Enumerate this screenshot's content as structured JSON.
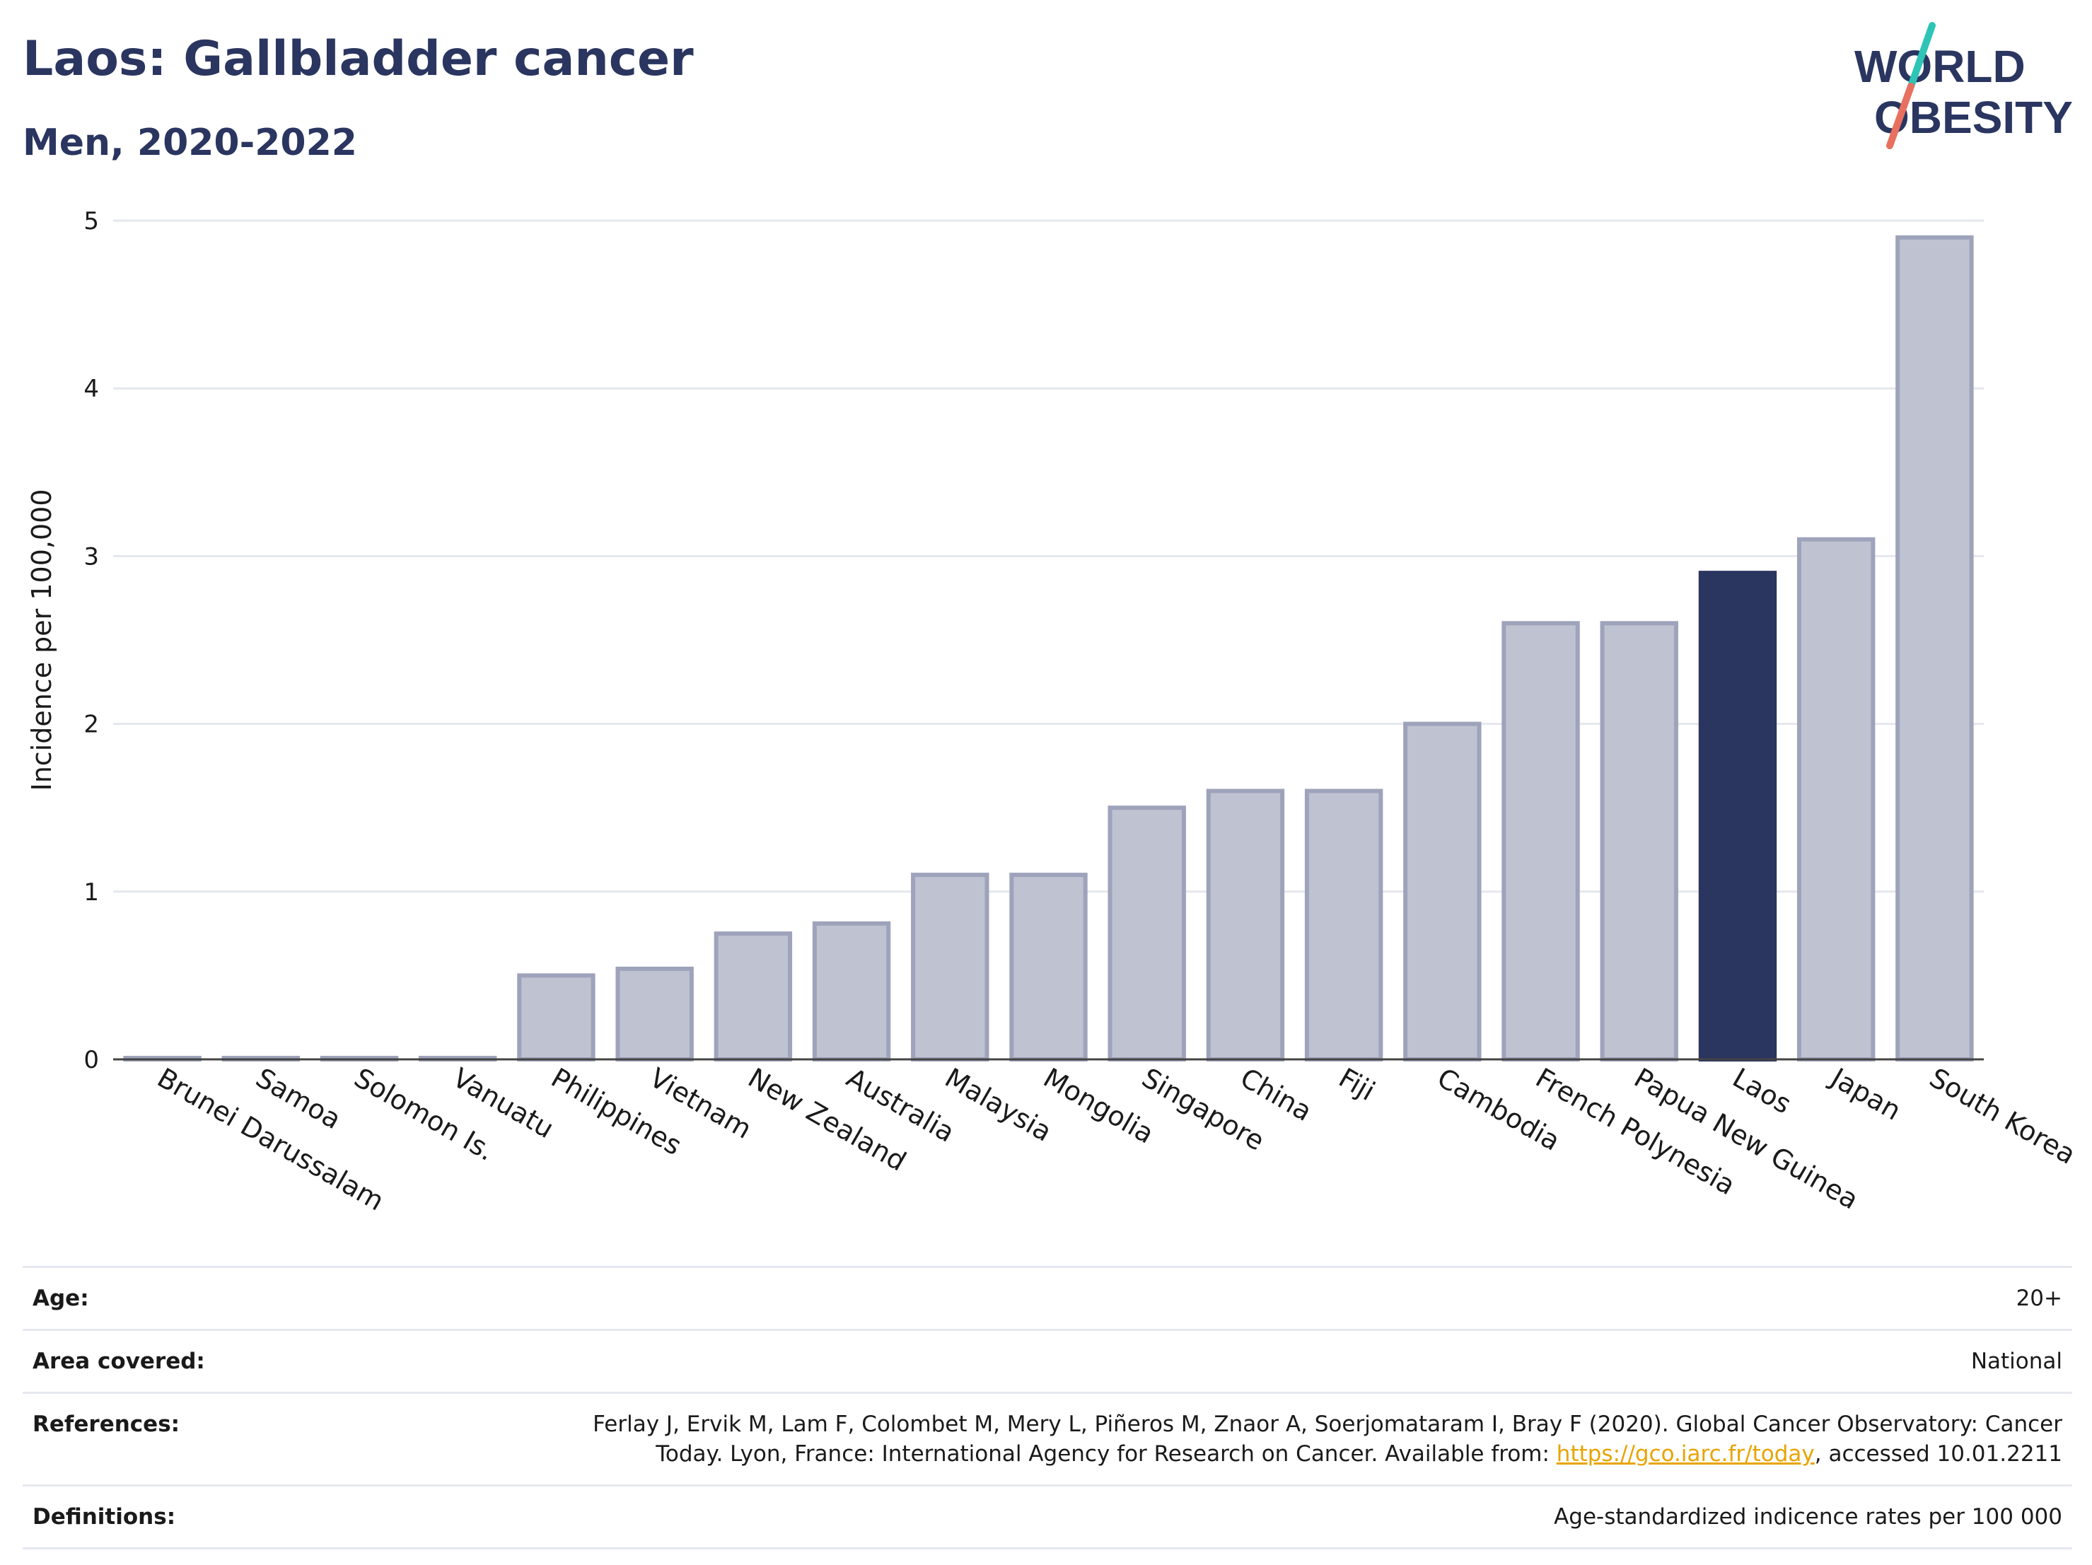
{
  "title": "Laos: Gallbladder cancer",
  "subtitle": "Men, 2020-2022",
  "logo": {
    "line1": "WORLD",
    "line2": "OBESITY"
  },
  "colors": {
    "highlight": "#2a3560",
    "bar_fill": "#bfc2d0",
    "bar_stroke": "#9ea3bb",
    "logo_teal": "#2ec4b6",
    "logo_coral": "#e8705f",
    "link": "#e8a400"
  },
  "chart_data": {
    "type": "bar",
    "ylabel": "Incidence per 100,000",
    "ylim": [
      0,
      5
    ],
    "yticks": [
      0,
      1,
      2,
      3,
      4,
      5
    ],
    "grid": true,
    "highlight": "Laos",
    "categories": [
      "Brunei Darussalam",
      "Samoa",
      "Solomon Is.",
      "Vanuatu",
      "Philippines",
      "Vietnam",
      "New Zealand",
      "Australia",
      "Malaysia",
      "Mongolia",
      "Singapore",
      "China",
      "Fiji",
      "Cambodia",
      "French Polynesia",
      "Papua New Guinea",
      "Laos",
      "Japan",
      "South Korea"
    ],
    "values": [
      0,
      0,
      0,
      0,
      0.5,
      0.54,
      0.75,
      0.81,
      1.1,
      1.1,
      1.5,
      1.6,
      1.6,
      2.0,
      2.6,
      2.6,
      2.9,
      3.1,
      4.9
    ]
  },
  "info": {
    "age_label": "Age:",
    "age_value": "20+",
    "area_label": "Area covered:",
    "area_value": "National",
    "references_label": "References:",
    "references_line1": "Ferlay J, Ervik M, Lam F, Colombet M, Mery L, Piñeros M, Znaor A, Soerjomataram I, Bray F (2020). Global Cancer Observatory: Cancer",
    "references_line2_pre": "Today. Lyon, France: International Agency for Research on Cancer. Available from:",
    "references_link": "https://gco.iarc.fr/today",
    "references_line2_post": ", accessed 10.01.2211",
    "definitions_label": "Definitions:",
    "definitions_value": "Age-standardized indicence rates per 100 000"
  }
}
